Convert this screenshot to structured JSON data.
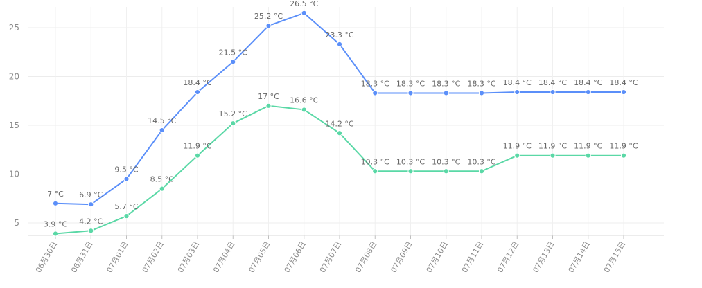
{
  "chart_data": {
    "type": "line",
    "categories": [
      "06月30日",
      "06月31日",
      "07月01日",
      "07月02日",
      "07月03日",
      "07月04日",
      "07月05日",
      "07月06日",
      "07月07日",
      "07月08日",
      "07月09日",
      "07月10日",
      "07月11日",
      "07月12日",
      "07月13日",
      "07月14日",
      "07月15日"
    ],
    "series": [
      {
        "values": [
          7,
          6.9,
          9.5,
          14.5,
          18.4,
          21.5,
          25.2,
          26.5,
          23.3,
          18.3,
          18.3,
          18.3,
          18.3,
          18.4,
          18.4,
          18.4,
          18.4
        ],
        "color": "#5b8ff9"
      },
      {
        "values": [
          3.9,
          4.2,
          5.7,
          8.5,
          11.9,
          15.2,
          17,
          16.6,
          14.2,
          10.3,
          10.3,
          10.3,
          10.3,
          11.9,
          11.9,
          11.9,
          11.9
        ],
        "color": "#5ad8a6"
      }
    ],
    "label_suffix": " °C",
    "yticks": [
      5,
      10,
      15,
      20,
      25
    ],
    "ylim": [
      3.5,
      27
    ],
    "grid": true,
    "title": "",
    "xlabel": "",
    "ylabel": ""
  }
}
